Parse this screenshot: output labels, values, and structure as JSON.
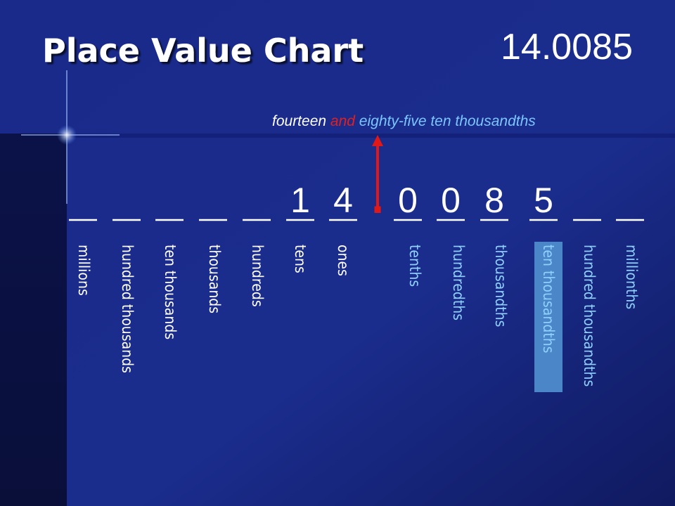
{
  "title": "Place Value Chart",
  "number": "14.0085",
  "words": {
    "whole": "fourteen",
    "and": "and",
    "fraction": "eighty-five ten thousandths"
  },
  "decimal_point": ".",
  "whole_places": [
    {
      "label": "millions"
    },
    {
      "label": "hundred thousands"
    },
    {
      "label": "ten thousands"
    },
    {
      "label": "thousands"
    },
    {
      "label": "hundreds"
    },
    {
      "label": "tens",
      "digit": "1"
    },
    {
      "label": "ones",
      "digit": "4"
    }
  ],
  "decimal_places": [
    {
      "label": "tenths",
      "digit": "0"
    },
    {
      "label": "hundredths",
      "digit": "0"
    },
    {
      "label": "thousandths",
      "digit": "8"
    },
    {
      "label": "ten thousandths",
      "digit": "5",
      "highlight": true
    },
    {
      "label": "hundred thousandths"
    },
    {
      "label": "millionths"
    }
  ]
}
